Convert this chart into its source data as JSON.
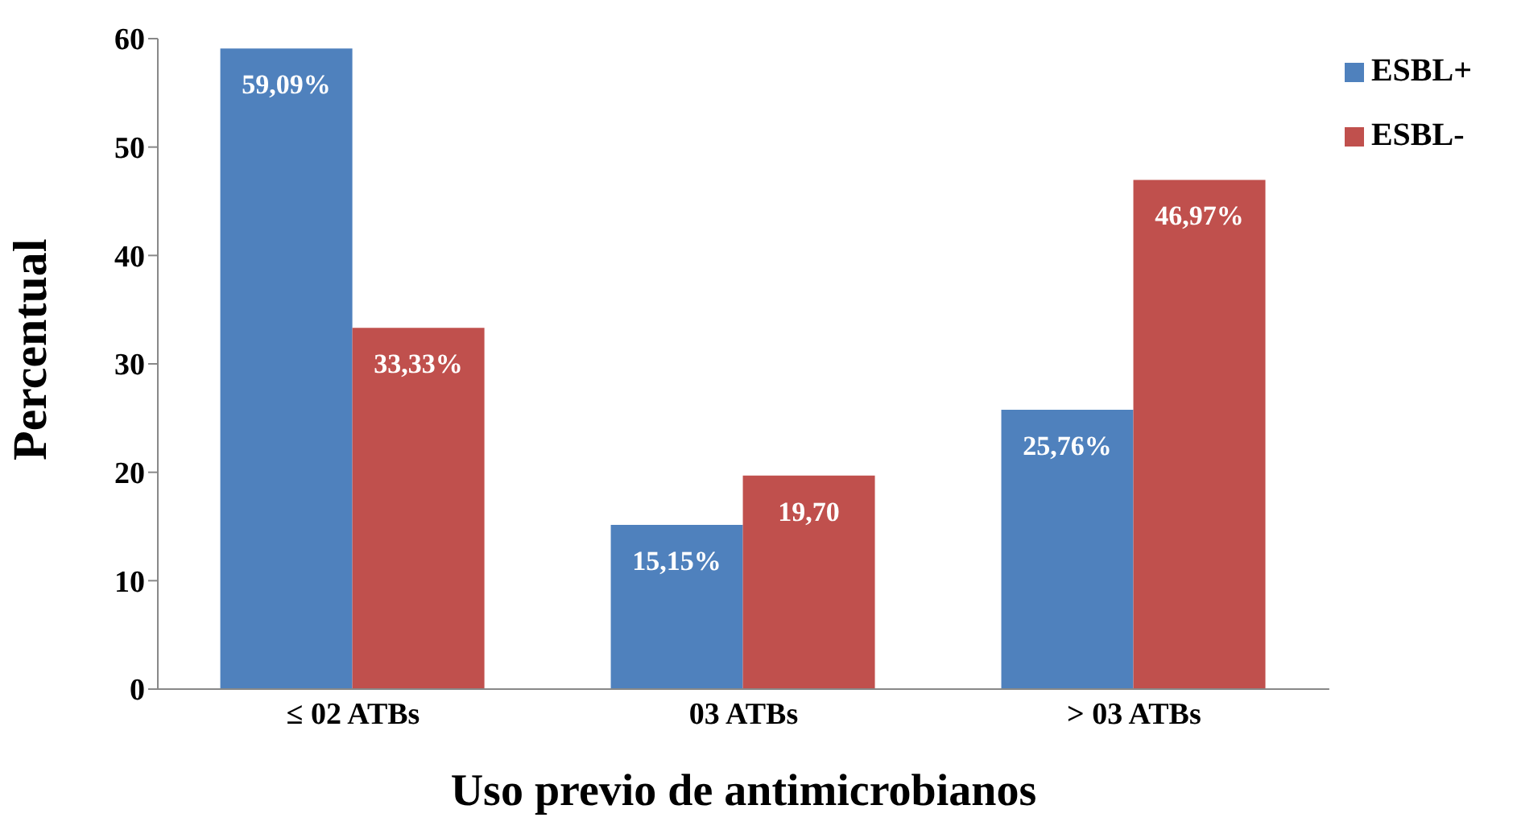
{
  "chart_data": {
    "type": "bar",
    "xlabel": "Uso  previo de antimicrobianos",
    "ylabel": "Percentual",
    "categories": [
      "≤ 02 ATBs",
      "03 ATBs",
      "> 03 ATBs"
    ],
    "series": [
      {
        "name": "ESBL+",
        "color": "#4f81bd",
        "values": [
          59.09,
          15.15,
          25.76
        ],
        "value_labels": [
          "59,09%",
          "15,15%",
          "25,76%"
        ]
      },
      {
        "name": "ESBL-",
        "color": "#c0504d",
        "values": [
          33.33,
          19.7,
          46.97
        ],
        "value_labels": [
          "33,33%",
          "19,70",
          "46,97%"
        ]
      }
    ],
    "ylim": [
      0,
      60
    ],
    "yticks": [
      0,
      10,
      20,
      30,
      40,
      50,
      60
    ],
    "grid": false,
    "legend": "top right"
  }
}
